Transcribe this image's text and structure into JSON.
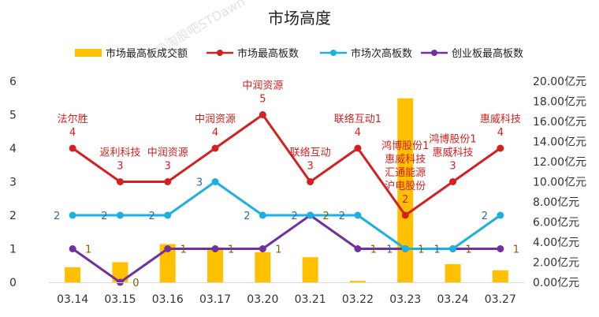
{
  "chart_data": {
    "type": "bar+line",
    "title": "市场高度",
    "categories": [
      "03.14",
      "03.15",
      "03.16",
      "03.17",
      "03.20",
      "03.21",
      "03.22",
      "03.23",
      "03.24",
      "03.27"
    ],
    "y_left": {
      "ylim": [
        0,
        6
      ],
      "ticks": [
        "0",
        "1",
        "2",
        "3",
        "4",
        "5",
        "6"
      ]
    },
    "y_right": {
      "ylim": [
        0,
        20
      ],
      "ticks": [
        "0.00亿元",
        "2.00亿元",
        "4.00亿元",
        "6.00亿元",
        "8.00亿元",
        "10.00亿元",
        "12.00亿元",
        "14.00亿元",
        "16.00亿元",
        "18.00亿元",
        "20.00亿元"
      ]
    },
    "legend": [
      "市场最高板成交额",
      "市场最高板数",
      "市场次高板数",
      "创业板最高板数"
    ],
    "legend_position": "top",
    "grid": false,
    "bars": {
      "name": "市场最高板成交额",
      "axis": "right",
      "color": "#ffc000",
      "values": [
        1.5,
        2.0,
        3.8,
        3.4,
        3.0,
        2.5,
        0.15,
        18.3,
        1.8,
        1.2
      ]
    },
    "series": [
      {
        "name": "市场最高板数",
        "color": "#d42020",
        "values": [
          4,
          3,
          3,
          4,
          5,
          3,
          4,
          2,
          3,
          4
        ],
        "annotations": [
          [
            "法尔胜",
            "4"
          ],
          [
            "返利科技",
            "3"
          ],
          [
            "中润资源",
            "3"
          ],
          [
            "中润资源",
            "4"
          ],
          [
            "中润资源",
            "5"
          ],
          [
            "联络互动",
            "3"
          ],
          [
            "联络互动1",
            "4"
          ],
          [
            "鸿博股份1",
            "惠威科技",
            "汇通能源",
            "沪电股份",
            "2"
          ],
          [
            "鸿博股份1",
            "惠威科技",
            "3"
          ],
          [
            "惠威科技",
            "4"
          ]
        ]
      },
      {
        "name": "市场次高板数",
        "color": "#1cb0e0",
        "values": [
          2,
          2,
          2,
          3,
          2,
          2,
          2,
          1,
          1,
          2
        ],
        "labels": [
          "2",
          "2",
          "2",
          "3",
          "2",
          "2",
          "2",
          "1",
          "1",
          "2"
        ]
      },
      {
        "name": "创业板最高板数",
        "color": "#7030a0",
        "values": [
          1,
          0,
          1,
          1,
          1,
          2,
          1,
          1,
          1,
          1
        ],
        "labels": [
          "1",
          "0",
          "1",
          "1",
          "1",
          "2",
          "1",
          "1",
          "1",
          "1"
        ]
      }
    ],
    "watermark": "@淘股吧STDawn"
  }
}
